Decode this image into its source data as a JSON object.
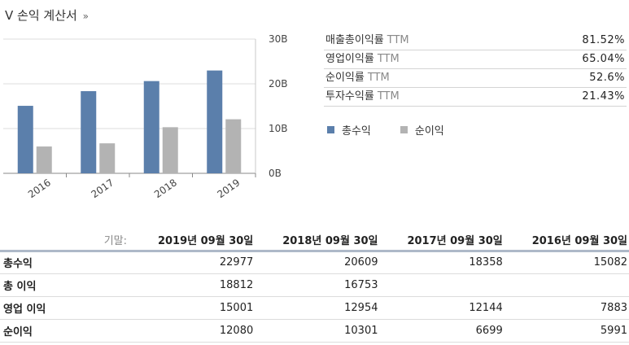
{
  "section": {
    "title": "V 손익 계산서",
    "more": "»"
  },
  "chart_data": {
    "type": "bar",
    "categories": [
      "2016",
      "2017",
      "2018",
      "2019"
    ],
    "series": [
      {
        "name": "총수익",
        "values": [
          15.082,
          18.358,
          20.609,
          22.977
        ],
        "color": "#5b7fab"
      },
      {
        "name": "순이익",
        "values": [
          5.991,
          6.699,
          10.301,
          12.08
        ],
        "color": "#b3b3b3"
      }
    ],
    "yticks": [
      "0B",
      "10B",
      "20B",
      "30B"
    ],
    "ylim": [
      0,
      30
    ],
    "grid": true,
    "legend_position": "right"
  },
  "metrics": [
    {
      "label": "매출총이익률",
      "suffix": "TTM",
      "value": "81.52%"
    },
    {
      "label": "영업이익률",
      "suffix": "TTM",
      "value": "65.04%"
    },
    {
      "label": "순이익률",
      "suffix": "TTM",
      "value": "52.6%"
    },
    {
      "label": "투자수익률",
      "suffix": "TTM",
      "value": "21.43%"
    }
  ],
  "legend": [
    {
      "label": "총수익",
      "color": "#5b7fab"
    },
    {
      "label": "순이익",
      "color": "#b3b3b3"
    }
  ],
  "table": {
    "period_label": "기말:",
    "columns": [
      "2019년 09월 30일",
      "2018년 09월 30일",
      "2017년 09월 30일",
      "2016년 09월 30일"
    ],
    "rows": [
      {
        "label": "총수익",
        "values": [
          "22977",
          "20609",
          "18358",
          "15082"
        ]
      },
      {
        "label": "총 이익",
        "values": [
          "18812",
          "16753",
          "",
          ""
        ]
      },
      {
        "label": "영업 이익",
        "values": [
          "15001",
          "12954",
          "12144",
          "7883"
        ]
      },
      {
        "label": "순이익",
        "values": [
          "12080",
          "10301",
          "6699",
          "5991"
        ]
      }
    ]
  }
}
